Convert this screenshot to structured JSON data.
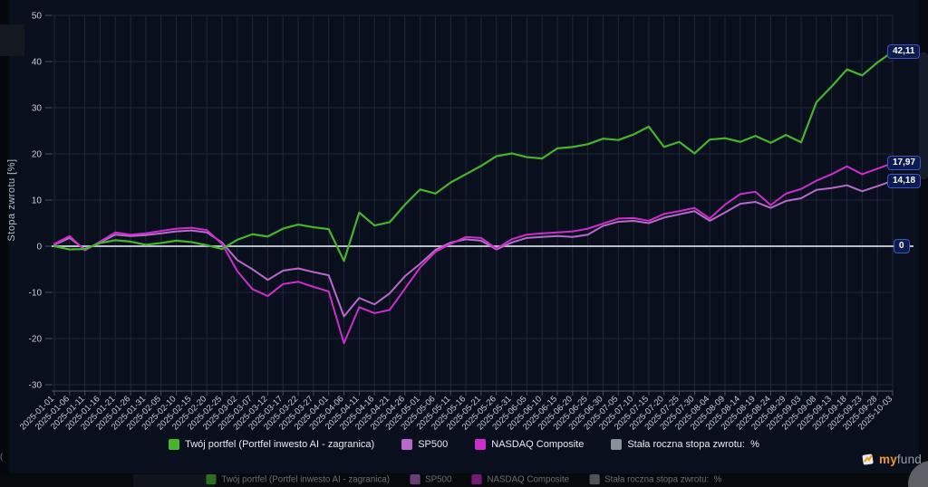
{
  "ui": {
    "brand": {
      "part1": "my",
      "part2": "fund."
    },
    "left_edge_fragments": [
      "(",
      "("
    ]
  },
  "chart_data": {
    "type": "line",
    "title": "",
    "xlabel": "",
    "ylabel": "Stopa zwrotu [%]",
    "ylim": [
      -31.5,
      51
    ],
    "yticks": [
      50,
      40,
      30,
      20,
      10,
      0,
      -10,
      -20,
      -30
    ],
    "grid": true,
    "legend_position": "bottom",
    "x_labels": [
      "2025-01-01",
      "2025-01-06",
      "2025-01-11",
      "2025-01-16",
      "2025-01-21",
      "2025-01-26",
      "2025-01-31",
      "2025-02-05",
      "2025-02-10",
      "2025-02-15",
      "2025-02-20",
      "2025-02-25",
      "2025-03-02",
      "2025-03-07",
      "2025-03-12",
      "2025-03-17",
      "2025-03-22",
      "2025-03-27",
      "2025-04-01",
      "2025-04-06",
      "2025-04-11",
      "2025-04-16",
      "2025-04-21",
      "2025-04-26",
      "2025-05-01",
      "2025-05-06",
      "2025-05-11",
      "2025-05-16",
      "2025-05-21",
      "2025-05-26",
      "2025-05-31",
      "2025-06-05",
      "2025-06-10",
      "2025-06-15",
      "2025-06-20",
      "2025-06-25",
      "2025-06-30",
      "2025-07-05",
      "2025-07-10",
      "2025-07-15",
      "2025-07-20",
      "2025-07-25",
      "2025-07-30",
      "2025-08-04",
      "2025-08-09",
      "2025-08-14",
      "2025-08-19",
      "2025-08-24",
      "2025-08-29",
      "2025-09-03",
      "2025-09-08",
      "2025-09-13",
      "2025-09-18",
      "2025-09-23",
      "2025-09-28",
      "2025-10-03"
    ],
    "series": [
      {
        "key": "portfolio",
        "name": "Twój portfel (Portfel inwesto AI - zagranica)",
        "color": "#46b52d",
        "end_label": "42,11",
        "values": [
          0,
          -0.7,
          -0.6,
          0.7,
          1.3,
          1.0,
          0.3,
          0.7,
          1.2,
          0.9,
          0.2,
          -0.6,
          1.4,
          2.6,
          2.1,
          3.8,
          4.7,
          4.1,
          3.7,
          -3.2,
          7.3,
          4.5,
          5.2,
          9.0,
          12.3,
          11.4,
          13.8,
          15.6,
          17.4,
          19.5,
          20.1,
          19.3,
          19.0,
          21.2,
          21.5,
          22.1,
          23.3,
          23.0,
          24.2,
          25.9,
          21.5,
          22.6,
          20.1,
          23.1,
          23.4,
          22.6,
          23.9,
          22.4,
          24.1,
          22.5,
          31.2,
          34.6,
          38.3,
          37.0,
          39.8,
          42.11
        ]
      },
      {
        "key": "sp500",
        "name": "SP500",
        "color": "#b968cc",
        "end_label": "14,18",
        "values": [
          0.3,
          1.8,
          -0.7,
          0.8,
          2.5,
          2.2,
          2.4,
          2.8,
          3.2,
          3.4,
          3.0,
          0.8,
          -3.0,
          -5.0,
          -7.3,
          -5.3,
          -4.8,
          -5.6,
          -6.3,
          -15.2,
          -11.2,
          -12.6,
          -10.2,
          -6.5,
          -3.8,
          -0.8,
          0.8,
          1.5,
          1.2,
          -0.7,
          0.8,
          1.8,
          2.0,
          2.2,
          2.0,
          2.5,
          4.4,
          5.3,
          5.5,
          5.0,
          6.2,
          6.9,
          7.6,
          5.5,
          7.3,
          9.2,
          9.6,
          8.3,
          9.8,
          10.4,
          12.2,
          12.6,
          13.2,
          11.9,
          13.0,
          14.18
        ]
      },
      {
        "key": "nasdaq",
        "name": "NASDAQ Composite",
        "color": "#cb2ecb",
        "end_label": "17,97",
        "values": [
          0.5,
          2.2,
          -0.9,
          1.0,
          3.0,
          2.5,
          2.8,
          3.3,
          3.8,
          4.0,
          3.5,
          0.5,
          -5.4,
          -9.3,
          -10.8,
          -8.2,
          -7.7,
          -8.8,
          -9.8,
          -21.0,
          -13.2,
          -14.5,
          -13.8,
          -9.2,
          -4.6,
          -1.2,
          0.5,
          2.0,
          1.8,
          -0.5,
          1.5,
          2.5,
          2.8,
          3.0,
          3.2,
          3.8,
          4.9,
          6.0,
          6.1,
          5.5,
          7.0,
          7.6,
          8.3,
          6.0,
          9.0,
          11.3,
          11.8,
          8.9,
          11.4,
          12.4,
          14.2,
          15.6,
          17.3,
          15.6,
          16.8,
          17.97
        ]
      },
      {
        "key": "fixed-rate",
        "name": "Stała roczna stopa zwrotu:  %",
        "color": "#8a9097",
        "end_label": "0",
        "constant": 0
      }
    ]
  }
}
